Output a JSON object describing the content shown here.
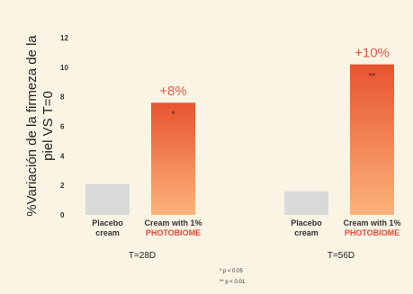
{
  "chart_data": {
    "type": "bar",
    "ylabel_line1": "%Variación de la firmeza de la",
    "ylabel_line2": "piel VS T=0",
    "ylim": [
      0,
      12
    ],
    "yticks": [
      0,
      2,
      4,
      6,
      8,
      10,
      12
    ],
    "groups": [
      {
        "name": "T=28D",
        "bars": [
          {
            "label_line1": "Placebo",
            "label_line2": "cream",
            "value": 2.1,
            "color": "#d9d9d9",
            "data_label": "",
            "sig": ""
          },
          {
            "label_line1": "Cream with 1%",
            "label_line2": "PHOTOBIOME",
            "value": 7.6,
            "color": "#f07a3a",
            "data_label": "+8%",
            "sig": "*"
          }
        ]
      },
      {
        "name": "T=56D",
        "bars": [
          {
            "label_line1": "Placebo",
            "label_line2": "cream",
            "value": 1.6,
            "color": "#d9d9d9",
            "data_label": "",
            "sig": ""
          },
          {
            "label_line1": "Cream with 1%",
            "label_line2": "PHOTOBIOME",
            "value": 10.2,
            "color": "#f07a3a",
            "data_label": "+10%",
            "sig": "**"
          }
        ]
      }
    ],
    "footnotes": [
      "* p < 0.05",
      "** p < 0.01"
    ]
  },
  "colors": {
    "background": "#faf4e4",
    "placebo": "#d9d9d9",
    "gradient_top": "#e8532f",
    "gradient_bottom": "#fbb37a",
    "accent_text": "#e8483a"
  }
}
